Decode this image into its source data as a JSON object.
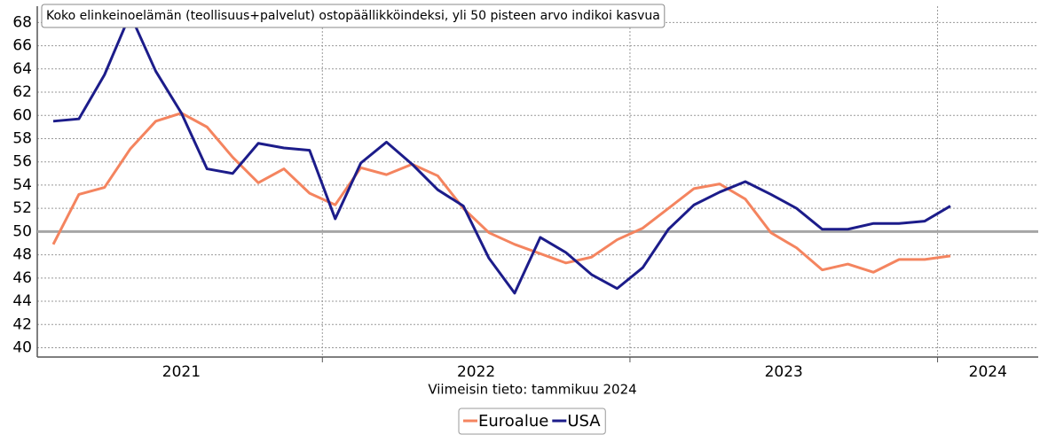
{
  "chart_data": {
    "type": "line",
    "title": "Koko elinkeinoelämän (teollisuus+palvelut) ostopäällikköindeksi, yli 50 pisteen arvo indikoi kasvua",
    "subtitle": "Viimeisin tieto: tammikuu 2024",
    "categories": [
      "2021",
      null,
      null,
      null,
      null,
      null,
      null,
      null,
      null,
      null,
      null,
      "2022",
      null,
      null,
      null,
      null,
      null,
      null,
      null,
      null,
      null,
      null,
      null,
      "2023",
      null,
      null,
      null,
      null,
      null,
      null,
      null,
      null,
      null,
      null,
      null,
      "2024"
    ],
    "series": [
      {
        "name": "Euroalue",
        "color": "#f4845f",
        "values": [
          48.9,
          53.2,
          53.8,
          57.1,
          59.5,
          60.2,
          59.0,
          56.4,
          54.2,
          55.4,
          53.3,
          52.3,
          55.5,
          54.9,
          55.8,
          54.8,
          52.0,
          49.9,
          48.9,
          48.1,
          47.3,
          47.8,
          49.3,
          50.3,
          52.0,
          53.7,
          54.1,
          52.8,
          49.9,
          48.6,
          46.7,
          47.2,
          46.5,
          47.6,
          47.6,
          47.9
        ]
      },
      {
        "name": "USA",
        "color": "#1c1c8a",
        "values": [
          59.5,
          59.7,
          63.5,
          68.7,
          63.8,
          60.2,
          55.4,
          55.0,
          57.6,
          57.2,
          57.0,
          51.1,
          55.9,
          57.7,
          55.8,
          53.6,
          52.2,
          47.7,
          44.7,
          49.5,
          48.2,
          46.3,
          45.1,
          46.9,
          50.2,
          52.3,
          53.4,
          54.3,
          53.2,
          52.0,
          50.2,
          50.2,
          50.7,
          50.7,
          50.9,
          52.2
        ]
      }
    ],
    "ylim": [
      39.2,
      69.4
    ],
    "yticks": [
      40,
      42,
      44,
      46,
      48,
      50,
      52,
      54,
      56,
      58,
      60,
      62,
      64,
      66,
      68
    ],
    "reference_line": 50,
    "grid": true
  }
}
